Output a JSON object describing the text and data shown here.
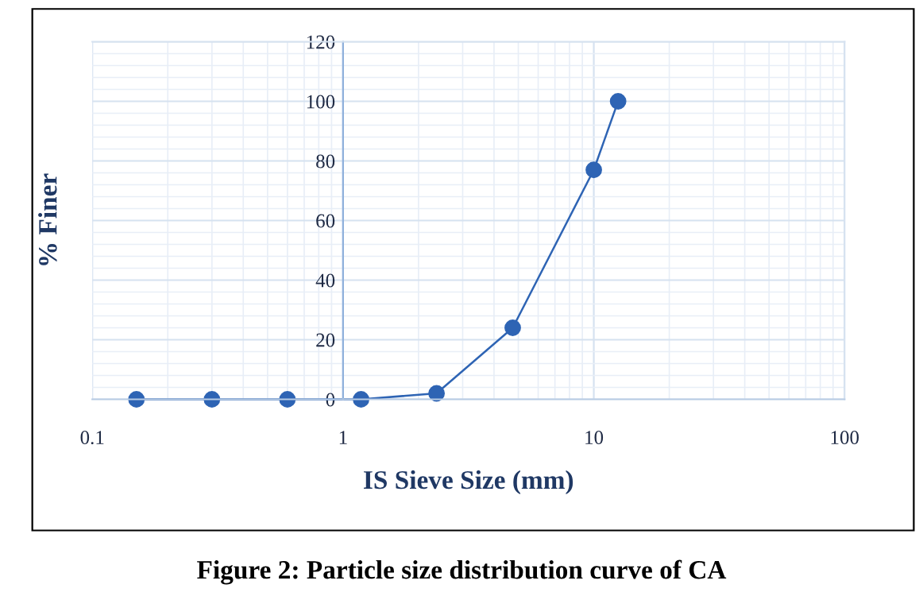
{
  "chart_data": {
    "type": "line",
    "xlabel": "IS Sieve Size (mm)",
    "ylabel": "% Finer",
    "annotations": [
      "Figure 2: Particle size distribution curve of CA"
    ],
    "x": [
      0.15,
      0.3,
      0.6,
      1.18,
      2.36,
      4.75,
      10,
      12.5
    ],
    "series": [
      {
        "color": "#2e64b4",
        "values": [
          0,
          0,
          0,
          0,
          2,
          24,
          77,
          100
        ]
      }
    ],
    "log": "x",
    "xlim": [
      0.1,
      100
    ],
    "xticks": [
      0.1,
      1,
      10,
      100
    ],
    "ylim": [
      0,
      120
    ],
    "yticks": [
      0,
      20,
      40,
      60,
      80,
      100,
      120
    ],
    "grid": true,
    "marker": "circle",
    "line_style": "solid",
    "legend": false
  }
}
